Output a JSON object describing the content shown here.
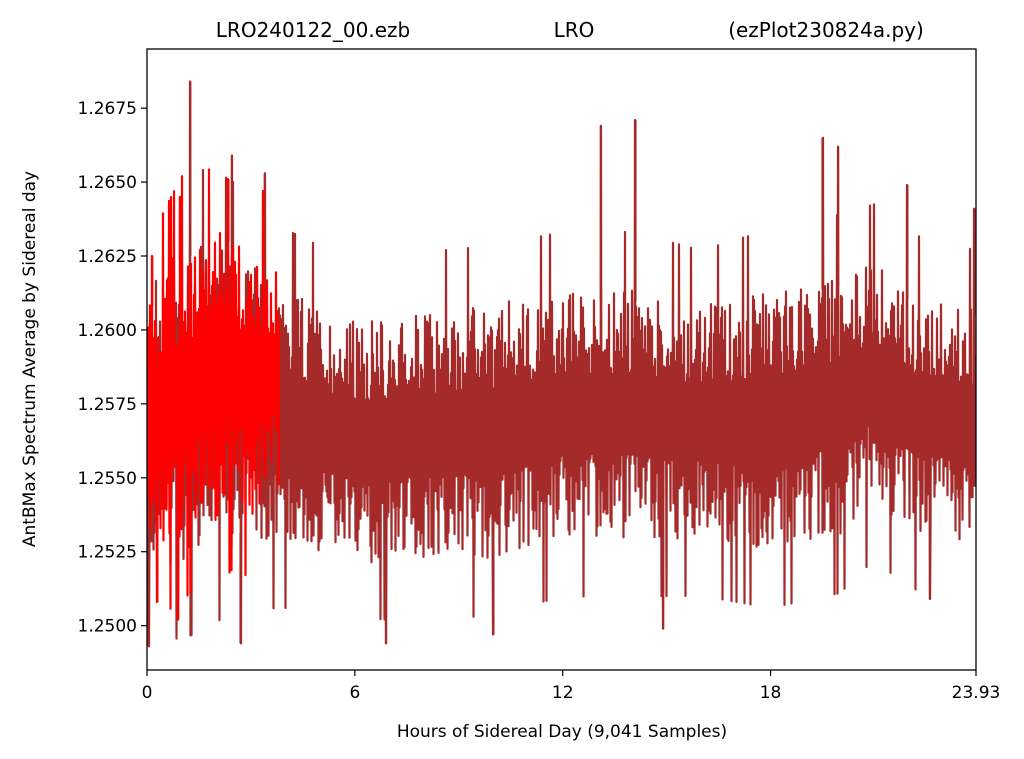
{
  "chart_data": {
    "type": "line",
    "title_parts": {
      "file": "LRO240122_00.ezb",
      "site": "LRO",
      "script": "(ezPlot230824a.py)"
    },
    "xlabel": "Hours of Sidereal Day  (9,041 Samples)",
    "ylabel": "AntBMax Spectrum Average by Sidereal day",
    "xlim": [
      0,
      23.93
    ],
    "ylim": [
      1.2485,
      1.2695
    ],
    "x_ticks": [
      {
        "value": 0,
        "label": "0"
      },
      {
        "value": 6,
        "label": "6"
      },
      {
        "value": 12,
        "label": "12"
      },
      {
        "value": 18,
        "label": "18"
      },
      {
        "value": 23.93,
        "label": "23.93"
      }
    ],
    "y_ticks": [
      {
        "value": 1.25,
        "label": "1.2500"
      },
      {
        "value": 1.2525,
        "label": "1.2525"
      },
      {
        "value": 1.255,
        "label": "1.2550"
      },
      {
        "value": 1.2575,
        "label": "1.2575"
      },
      {
        "value": 1.26,
        "label": "1.2600"
      },
      {
        "value": 1.2625,
        "label": "1.2625"
      },
      {
        "value": 1.265,
        "label": "1.2650"
      },
      {
        "value": 1.2675,
        "label": "1.2675"
      }
    ],
    "grid": false,
    "legend": "none",
    "series": [
      {
        "color": "#a52a2a",
        "x_range": [
          0,
          23.93
        ],
        "envelope": {
          "x": [
            0,
            1,
            2,
            3,
            4,
            6,
            8,
            10,
            12,
            14,
            16,
            18,
            20,
            21,
            22,
            23.93
          ],
          "low": [
            1.2525,
            1.2525,
            1.253,
            1.2532,
            1.253,
            1.2525,
            1.2525,
            1.2527,
            1.2533,
            1.2533,
            1.2532,
            1.253,
            1.2535,
            1.2545,
            1.2535,
            1.2532
          ],
          "high": [
            1.261,
            1.2625,
            1.2625,
            1.262,
            1.261,
            1.26,
            1.2603,
            1.2605,
            1.261,
            1.261,
            1.2605,
            1.261,
            1.2615,
            1.262,
            1.261,
            1.2605
          ]
        },
        "spikes": [
          {
            "x": 0.05,
            "y": 1.2493
          },
          {
            "x": 1.25,
            "y": 1.2684
          },
          {
            "x": 2.45,
            "y": 1.2659
          },
          {
            "x": 2.7,
            "y": 1.2494
          },
          {
            "x": 3.4,
            "y": 1.2653
          },
          {
            "x": 6.9,
            "y": 1.2494
          },
          {
            "x": 10.0,
            "y": 1.2497
          },
          {
            "x": 13.1,
            "y": 1.2669
          },
          {
            "x": 14.1,
            "y": 1.2671
          },
          {
            "x": 14.9,
            "y": 1.2499
          },
          {
            "x": 19.5,
            "y": 1.2665
          },
          {
            "x": 19.95,
            "y": 1.2662
          },
          {
            "x": 21.95,
            "y": 1.2649
          },
          {
            "x": 22.6,
            "y": 1.2509
          },
          {
            "x": 23.88,
            "y": 1.2641
          }
        ]
      },
      {
        "color": "#ff0000",
        "x_range": [
          0,
          3.8
        ],
        "envelope": {
          "x": [
            0,
            0.5,
            1,
            1.5,
            2,
            2.5,
            3,
            3.5,
            3.8
          ],
          "low": [
            1.2535,
            1.253,
            1.2535,
            1.254,
            1.254,
            1.2545,
            1.254,
            1.2545,
            1.255
          ],
          "high": [
            1.2605,
            1.2615,
            1.2625,
            1.2625,
            1.263,
            1.263,
            1.262,
            1.2625,
            1.262
          ]
        },
        "spikes": [
          {
            "x": 0.15,
            "y": 1.2625
          },
          {
            "x": 0.9,
            "y": 1.2502
          },
          {
            "x": 0.95,
            "y": 1.2645
          },
          {
            "x": 2.35,
            "y": 1.2651
          },
          {
            "x": 3.35,
            "y": 1.2647
          },
          {
            "x": 0.3,
            "y": 1.2508
          }
        ]
      }
    ]
  }
}
